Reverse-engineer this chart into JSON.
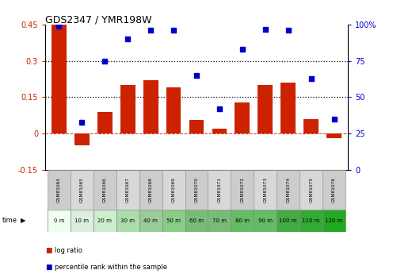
{
  "title": "GDS2347 / YMR198W",
  "samples": [
    "GSM81064",
    "GSM81065",
    "GSM81066",
    "GSM81067",
    "GSM81068",
    "GSM81069",
    "GSM81070",
    "GSM81071",
    "GSM81072",
    "GSM81073",
    "GSM81074",
    "GSM81075",
    "GSM81076"
  ],
  "time_labels": [
    "0 m",
    "10 m",
    "20 m",
    "30 m",
    "40 m",
    "50 m",
    "60 m",
    "70 m",
    "80 m",
    "90 m",
    "100 m",
    "110 m",
    "120 m"
  ],
  "log_ratio": [
    0.45,
    -0.05,
    0.09,
    0.2,
    0.22,
    0.19,
    0.055,
    0.02,
    0.13,
    0.2,
    0.21,
    0.06,
    -0.02
  ],
  "percentile_rank": [
    99,
    33,
    75,
    90,
    96,
    96,
    65,
    42,
    83,
    97,
    96,
    63,
    35
  ],
  "bar_color": "#cc2200",
  "dot_color": "#0000cc",
  "ylim_left": [
    -0.15,
    0.45
  ],
  "ylim_right": [
    0,
    100
  ],
  "yticks_left": [
    -0.15,
    0.0,
    0.15,
    0.3,
    0.45
  ],
  "yticks_right": [
    0,
    25,
    50,
    75,
    100
  ],
  "ytick_labels_left": [
    "-0.15",
    "0",
    "0.15",
    "0.3",
    "0.45"
  ],
  "ytick_labels_right": [
    "0",
    "25",
    "50",
    "75",
    "100%"
  ],
  "hlines": [
    0.15,
    0.3
  ],
  "time_bg_colors": [
    "#eeffee",
    "#ddeedd",
    "#ccddcc",
    "#bbccbb",
    "#aabbaa",
    "#99bb99",
    "#88aa88",
    "#779977",
    "#669966",
    "#558855",
    "#449944",
    "#338833",
    "#227722"
  ]
}
